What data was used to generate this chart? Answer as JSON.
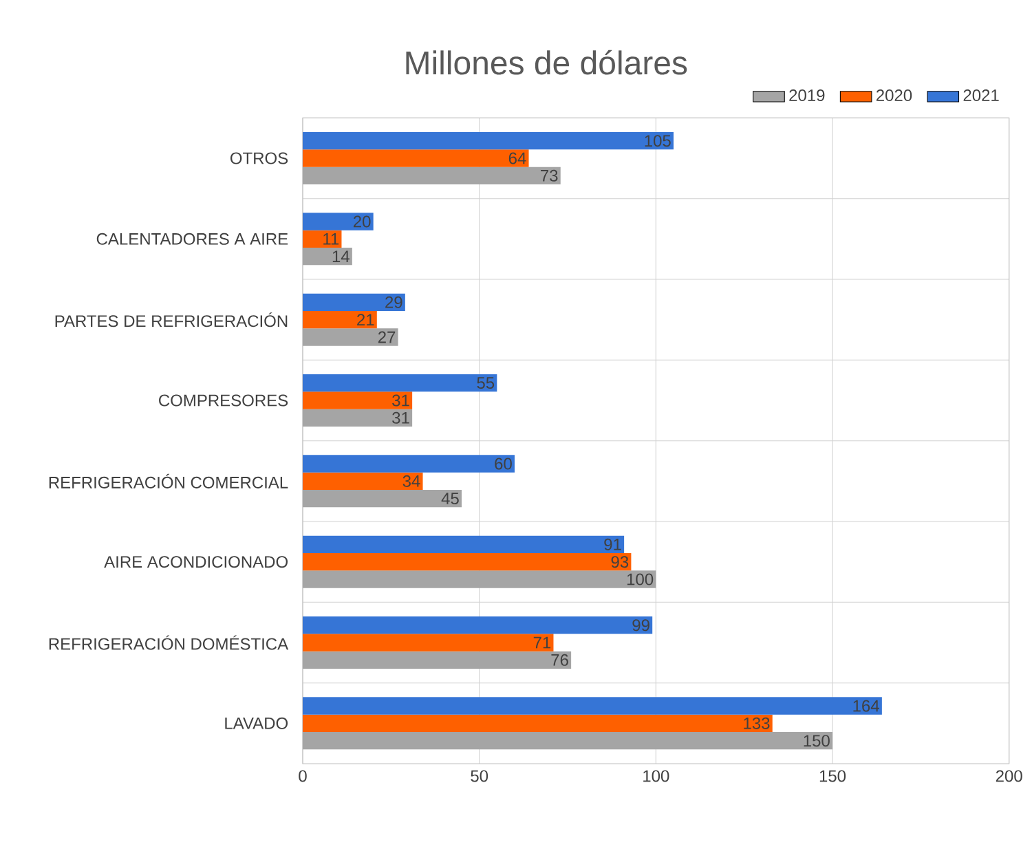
{
  "chart_data": {
    "type": "bar",
    "orientation": "horizontal",
    "title": "Millones de dólares",
    "categories": [
      "OTROS",
      "CALENTADORES A AIRE",
      "PARTES DE REFRIGERACIÓN",
      "COMPRESORES",
      "REFRIGERACIÓN COMERCIAL",
      "AIRE ACONDICIONADO",
      "REFRIGERACIÓN DOMÉSTICA",
      "LAVADO"
    ],
    "series": [
      {
        "name": "2019",
        "color": "#a5a5a5",
        "values": [
          73,
          14,
          27,
          31,
          45,
          100,
          76,
          150
        ]
      },
      {
        "name": "2020",
        "color": "#fe6000",
        "values": [
          64,
          11,
          21,
          31,
          34,
          93,
          71,
          133
        ]
      },
      {
        "name": "2021",
        "color": "#3675d6",
        "values": [
          105,
          20,
          29,
          55,
          60,
          91,
          99,
          164
        ]
      }
    ],
    "xlim": [
      0,
      200
    ],
    "xticks": [
      0,
      50,
      100,
      150,
      200
    ],
    "grid": true,
    "legend": "top right",
    "data_labels": true
  }
}
